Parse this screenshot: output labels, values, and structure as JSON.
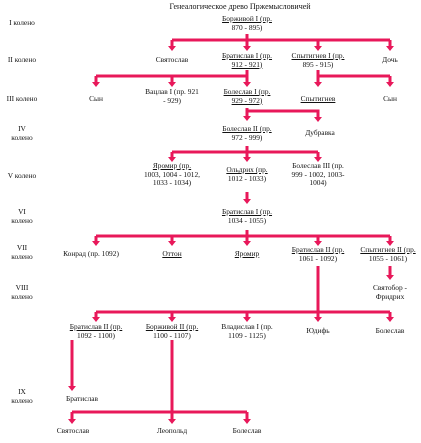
{
  "title": "Генеалогическое  древо Пржемысловичей",
  "generations": {
    "g1": "I колено",
    "g2": "II колено",
    "g3": "III колено",
    "g4a": "IV",
    "g4b": "колено",
    "g5": "V колено",
    "g6a": "VI",
    "g6b": "колено",
    "g7a": "VII",
    "g7b": "колено",
    "g8a": "VIII",
    "g8b": "колено",
    "g9a": "IX",
    "g9b": "колено"
  },
  "people": {
    "borivoy1": {
      "name": "Борживой I (пр.",
      "years": "870 - 895)"
    },
    "svyatoslav2": {
      "name": "Святослав"
    },
    "bratislav1": {
      "name": "Братислав I (пр.",
      "years": "912 - 921)"
    },
    "spytignev1": {
      "name": "Спытигнев I (пр.",
      "years": "895 - 915)"
    },
    "doch": {
      "name": "Дочь"
    },
    "syn3a": {
      "name": "Сын"
    },
    "vaclav1": {
      "name": "Вацлав I (пр. 921",
      "years": "- 929)"
    },
    "boleslav1": {
      "name": "Болеслав I (пр.",
      "years": "929 - 972)"
    },
    "spytignev3": {
      "name": "Спытигнев"
    },
    "syn3b": {
      "name": "Сын"
    },
    "boleslav2": {
      "name": "Болеслав II (пр.",
      "years": "972 - 999)"
    },
    "dubravka": {
      "name": "Дубравка"
    },
    "yaromir5": {
      "name": "Яромир (пр.",
      "years": "1003, 1004 - 1012,",
      "years2": "1033 - 1034)"
    },
    "oldrzhih": {
      "name": "Ольдрих (пр.",
      "years": "1012 - 1033)"
    },
    "boleslav3": {
      "name": "Болеслав III (пр.",
      "years": "999 - 1002, 1003-",
      "years2": "1004)"
    },
    "bratislav1b": {
      "name": "Братислав I (пр.",
      "years": "1034 - 1055)"
    },
    "konrad": {
      "name": "Конрад (пр. 1092)"
    },
    "otton": {
      "name": "Оттон"
    },
    "yaromir7": {
      "name": "Яромир"
    },
    "bratislav2": {
      "name": "Братислав II (пр.",
      "years": "1061 - 1092)"
    },
    "spytignev2": {
      "name": "Спытигнев II (пр.",
      "years": "1055 - 1061)"
    },
    "svyatobor": {
      "name": "Святобор -",
      "years": "Фридрих"
    },
    "bratislav2b": {
      "name": "Братислав II (пр.",
      "years": "1092 - 1100)"
    },
    "borivoy2": {
      "name": "Борживой II (пр.",
      "years": "1100 - 1107)"
    },
    "vladislav1": {
      "name": "Владислав I (пр.",
      "years": "1109 - 1125)"
    },
    "yudif": {
      "name": "Юдифь"
    },
    "boleslav8": {
      "name": "Болеслав"
    },
    "bratislav9": {
      "name": "Братислав"
    },
    "svyatoslav9": {
      "name": "Святослав"
    },
    "leopold": {
      "name": "Леопольд"
    },
    "boleslav9": {
      "name": "Болеслав"
    }
  },
  "colors": {
    "connector": "#e8185a",
    "text": "#111111"
  }
}
